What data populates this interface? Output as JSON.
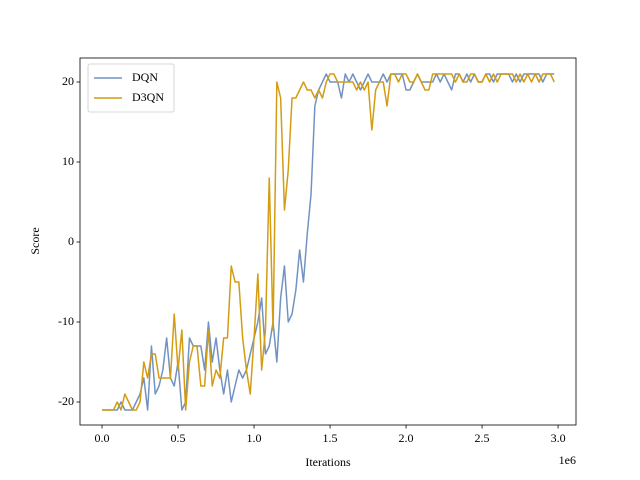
{
  "chart_data": {
    "type": "line",
    "x_label": "Iterations",
    "y_label": "Score",
    "x_offset_label": "1e6",
    "x": [
      0,
      25000,
      50000,
      75000,
      100000,
      125000,
      150000,
      175000,
      200000,
      225000,
      250000,
      275000,
      300000,
      325000,
      350000,
      375000,
      400000,
      425000,
      450000,
      475000,
      500000,
      525000,
      550000,
      575000,
      600000,
      625000,
      650000,
      675000,
      700000,
      725000,
      750000,
      775000,
      800000,
      825000,
      850000,
      875000,
      900000,
      925000,
      950000,
      975000,
      1000000,
      1025000,
      1050000,
      1075000,
      1100000,
      1125000,
      1150000,
      1175000,
      1200000,
      1225000,
      1250000,
      1275000,
      1300000,
      1325000,
      1350000,
      1375000,
      1400000,
      1425000,
      1450000,
      1475000,
      1500000,
      1525000,
      1550000,
      1575000,
      1600000,
      1625000,
      1650000,
      1675000,
      1700000,
      1725000,
      1750000,
      1775000,
      1800000,
      1825000,
      1850000,
      1875000,
      1900000,
      1925000,
      1950000,
      1975000,
      2000000,
      2025000,
      2050000,
      2075000,
      2100000,
      2125000,
      2150000,
      2175000,
      2200000,
      2225000,
      2250000,
      2275000,
      2300000,
      2325000,
      2350000,
      2375000,
      2400000,
      2425000,
      2450000,
      2475000,
      2500000,
      2525000,
      2550000,
      2575000,
      2600000,
      2625000,
      2650000,
      2675000,
      2700000,
      2725000,
      2750000,
      2775000,
      2800000,
      2825000,
      2850000,
      2875000,
      2900000,
      2925000,
      2950000,
      2975000
    ],
    "series": [
      {
        "name": "DQN",
        "color": "#7292c2",
        "values": [
          -21,
          -21,
          -21,
          -21,
          -21,
          -20,
          -21,
          -21,
          -21,
          -20,
          -19,
          -17,
          -21,
          -13,
          -19,
          -18,
          -16,
          -12,
          -17,
          -18,
          -15,
          -21,
          -20,
          -12,
          -13,
          -13,
          -13,
          -16,
          -10,
          -15,
          -12,
          -16,
          -19,
          -16,
          -20,
          -18,
          -16,
          -17,
          -16,
          -14,
          -12,
          -10,
          -7,
          -14,
          -13,
          -10,
          -15,
          -7,
          -3,
          -10,
          -9,
          -6,
          -1,
          -5,
          1,
          6,
          17,
          19,
          20,
          21,
          20,
          20,
          20,
          18,
          21,
          20,
          21,
          20,
          19,
          20,
          21,
          20,
          20,
          20,
          21,
          20,
          21,
          21,
          21,
          21,
          19,
          19,
          20,
          21,
          20,
          20,
          20,
          20,
          21,
          20,
          21,
          20,
          19,
          21,
          21,
          20,
          21,
          20,
          21,
          20,
          20,
          21,
          21,
          20,
          21,
          21,
          21,
          21,
          20,
          21,
          20,
          21,
          21,
          21,
          21,
          21,
          20,
          21,
          21,
          21
        ]
      },
      {
        "name": "D3QN",
        "color": "#d39c12",
        "values": [
          -21,
          -21,
          -21,
          -21,
          -20,
          -21,
          -19,
          -20,
          -21,
          -21,
          -20,
          -15,
          -17,
          -14,
          -14,
          -17,
          -17,
          -17,
          -17,
          -9,
          -16,
          -11,
          -21,
          -15,
          -13,
          -13,
          -18,
          -18,
          -11,
          -18,
          -16,
          -17,
          -12,
          -12,
          -3,
          -5,
          -5,
          -12,
          -16,
          -19,
          -12,
          -4,
          -16,
          -11,
          8,
          -11,
          20,
          18,
          4,
          9,
          18,
          18,
          19,
          20,
          19,
          19,
          18,
          19,
          18,
          20,
          21,
          21,
          20,
          20,
          20,
          20,
          20,
          19,
          20,
          19,
          20,
          14,
          19,
          20,
          20,
          17,
          21,
          21,
          20,
          21,
          21,
          20,
          20,
          21,
          20,
          19,
          19,
          21,
          21,
          21,
          21,
          21,
          21,
          20,
          21,
          20,
          20,
          21,
          21,
          20,
          20,
          21,
          20,
          21,
          20,
          21,
          21,
          21,
          21,
          20,
          21,
          20,
          21,
          20,
          21,
          20,
          21,
          21,
          21,
          20
        ]
      }
    ],
    "xlim": [
      -145000,
      3118000
    ],
    "xticks": [
      {
        "value": 0,
        "label": "0.0"
      },
      {
        "value": 500000,
        "label": "0.5"
      },
      {
        "value": 1000000,
        "label": "1.0"
      },
      {
        "value": 1500000,
        "label": "1.5"
      },
      {
        "value": 2000000,
        "label": "2.0"
      },
      {
        "value": 2500000,
        "label": "2.5"
      },
      {
        "value": 3000000,
        "label": "3.0"
      }
    ],
    "ylim": [
      -22.875,
      23
    ],
    "yticks": [
      -20,
      -10,
      0,
      10,
      20
    ],
    "legend": "upper left",
    "grid": false
  }
}
